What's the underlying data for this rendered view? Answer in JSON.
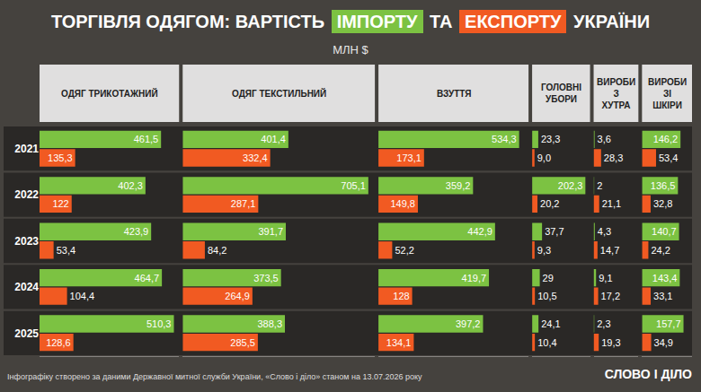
{
  "title": "ТОРГІВЛЯ ОДЯГОМ: ВАРТІСТЬ ІМПОРТУ ТА ЕКСПОРТУ УКРАЇНИ",
  "subtitle": "МЛН $",
  "source": "Інфографіку створено за даними Державної митної служби України, «Слово і діло» станом на 13.07.2026 року",
  "logo": "СЛОВО І ДІЛО",
  "chart_data": [
    {
      "type": "bar",
      "title": "ОДЯГ ТРИКОТАЖНИЙ",
      "orientation": "horizontal",
      "data_labels": true,
      "tick_labels": "y",
      "categories": [
        "2021",
        "2022",
        "2023",
        "2024",
        "2025"
      ],
      "xlim": [
        0,
        530
      ],
      "series": [
        {
          "name": "ІМПОРТУ",
          "color": "#7cc242",
          "values": [
            461.5,
            402.3,
            423.9,
            464.7,
            510.3
          ],
          "value_labels": [
            "461,5",
            "402,3",
            "423,9",
            "464,7",
            "510,3"
          ]
        },
        {
          "name": "ЕКСПОРТУ",
          "color": "#f15a22",
          "values": [
            135.3,
            122,
            53.4,
            104.4,
            128.6
          ],
          "value_labels": [
            "135,3",
            "122",
            "53,4",
            "104,4",
            "128,6"
          ]
        }
      ]
    },
    {
      "type": "bar",
      "title": "ОДЯГ ТЕКСТИЛЬНИЙ",
      "orientation": "horizontal",
      "data_labels": true,
      "tick_labels": false,
      "categories": [
        "2021",
        "2022",
        "2023",
        "2024",
        "2025"
      ],
      "xlim": [
        0,
        730
      ],
      "series": [
        {
          "name": "ІМПОРТУ",
          "color": "#7cc242",
          "values": [
            401.4,
            705.1,
            391.7,
            373.5,
            388.3
          ],
          "value_labels": [
            "401,4",
            "705,1",
            "391,7",
            "373,5",
            "388,3"
          ]
        },
        {
          "name": "ЕКСПОРТУ",
          "color": "#f15a22",
          "values": [
            332.4,
            287.1,
            84.2,
            264.9,
            285.5
          ],
          "value_labels": [
            "332,4",
            "287,1",
            "84,2",
            "264,9",
            "285,5"
          ]
        }
      ]
    },
    {
      "type": "bar",
      "title": "ВЗУТТЯ",
      "orientation": "horizontal",
      "data_labels": true,
      "tick_labels": false,
      "categories": [
        "2021",
        "2022",
        "2023",
        "2024",
        "2025"
      ],
      "xlim": [
        0,
        570
      ],
      "series": [
        {
          "name": "ІМПОРТУ",
          "color": "#7cc242",
          "values": [
            534.3,
            359.2,
            442.9,
            419.7,
            397.2
          ],
          "value_labels": [
            "534,3",
            "359,2",
            "442,9",
            "419,7",
            "397,2"
          ]
        },
        {
          "name": "ЕКСПОРТУ",
          "color": "#f15a22",
          "values": [
            173.1,
            149.8,
            52.2,
            128,
            134.1
          ],
          "value_labels": [
            "173,1",
            "149,8",
            "52,2",
            "128",
            "134,1"
          ]
        }
      ]
    },
    {
      "type": "bar",
      "title": "ГОЛОВНІ УБОРИ",
      "orientation": "horizontal",
      "data_labels": true,
      "tick_labels": false,
      "categories": [
        "2021",
        "2022",
        "2023",
        "2024",
        "2025"
      ],
      "xlim": [
        0,
        220
      ],
      "series": [
        {
          "name": "ІМПОРТУ",
          "color": "#7cc242",
          "values": [
            23.3,
            202.3,
            37.7,
            29,
            24.1
          ],
          "value_labels": [
            "23,3",
            "202,3",
            "37,7",
            "29",
            "24,1"
          ]
        },
        {
          "name": "ЕКСПОРТУ",
          "color": "#f15a22",
          "values": [
            9.0,
            20.2,
            9.3,
            10.5,
            10.4
          ],
          "value_labels": [
            "9,0",
            "20,2",
            "9,3",
            "10,5",
            "10,4"
          ]
        }
      ]
    },
    {
      "type": "bar",
      "title": "ВИРОБИ З ХУТРА",
      "orientation": "horizontal",
      "data_labels": true,
      "tick_labels": false,
      "categories": [
        "2021",
        "2022",
        "2023",
        "2024",
        "2025"
      ],
      "xlim": [
        0,
        170
      ],
      "series": [
        {
          "name": "ІМПОРТУ",
          "color": "#7cc242",
          "values": [
            3.6,
            2,
            4.3,
            9.1,
            2.3
          ],
          "value_labels": [
            "3,6",
            "2",
            "4,3",
            "9,1",
            "2,3"
          ]
        },
        {
          "name": "ЕКСПОРТУ",
          "color": "#f15a22",
          "values": [
            28.3,
            21.1,
            14.7,
            17.2,
            19.3
          ],
          "value_labels": [
            "28,3",
            "21,1",
            "14,7",
            "17,2",
            "19,3"
          ]
        }
      ]
    },
    {
      "type": "bar",
      "title": "ВИРОБИ ЗІ ШКІРИ",
      "orientation": "horizontal",
      "data_labels": true,
      "tick_labels": false,
      "categories": [
        "2021",
        "2022",
        "2023",
        "2024",
        "2025"
      ],
      "xlim": [
        0,
        190
      ],
      "series": [
        {
          "name": "ІМПОРТУ",
          "color": "#7cc242",
          "values": [
            146.2,
            136.5,
            140.7,
            143.4,
            157.7
          ],
          "value_labels": [
            "146,2",
            "136,5",
            "140,7",
            "143,4",
            "157,7"
          ]
        },
        {
          "name": "ЕКСПОРТУ",
          "color": "#f15a22",
          "values": [
            53.4,
            32.8,
            24.2,
            33.1,
            34.9
          ],
          "value_labels": [
            "53,4",
            "32,8",
            "24,2",
            "33,1",
            "34,9"
          ]
        }
      ]
    }
  ]
}
